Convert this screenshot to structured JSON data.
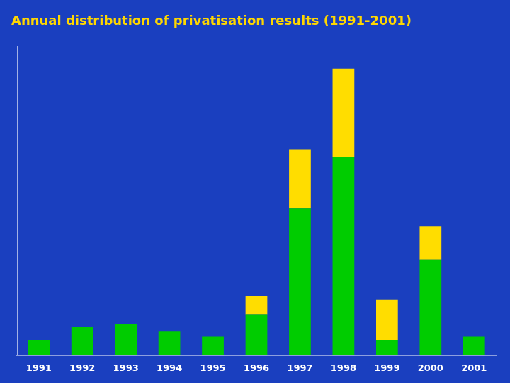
{
  "chart_data": {
    "type": "bar",
    "title": "Annual distribution of privatisation results (1991-2001)",
    "categories": [
      "1991",
      "1992",
      "1993",
      "1994",
      "1995",
      "1996",
      "1997",
      "1998",
      "1999",
      "2000",
      "2001"
    ],
    "series": [
      {
        "color": "#00CC00",
        "values": [
          2.0,
          3.8,
          4.2,
          3.2,
          2.5,
          5.5,
          20.0,
          27.0,
          2.0,
          13.0,
          2.5
        ]
      },
      {
        "color": "#FFDD00",
        "values": [
          0,
          0,
          0,
          0,
          0,
          2.5,
          8.0,
          12.0,
          5.5,
          4.5,
          0
        ]
      }
    ],
    "stacked": true,
    "ylim": [
      0,
      42
    ],
    "grid": false,
    "tick_labels": "x"
  }
}
